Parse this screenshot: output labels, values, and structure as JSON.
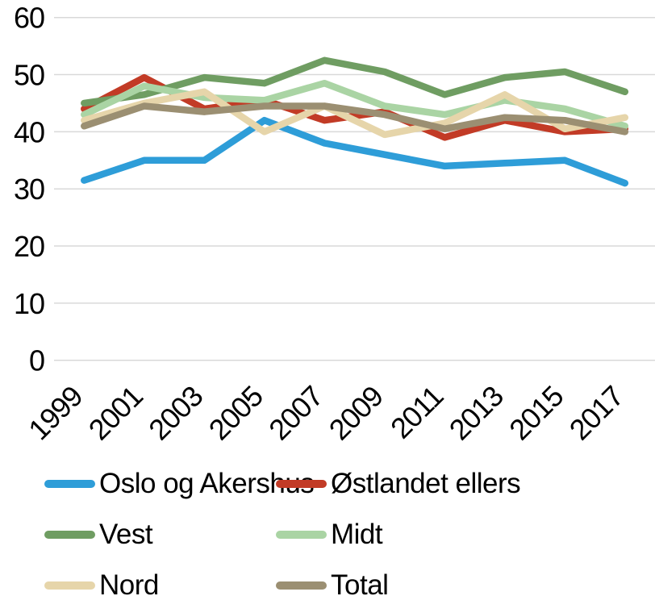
{
  "chart_data": {
    "type": "line",
    "title": "",
    "xlabel": "",
    "ylabel": "",
    "categories": [
      "1999",
      "2001",
      "2003",
      "2005",
      "2007",
      "2009",
      "2011",
      "2013",
      "2015",
      "2017"
    ],
    "series": [
      {
        "name": "Oslo og Akershus",
        "color": "#2e9dd8",
        "values": [
          31.5,
          35,
          35,
          42,
          38,
          36,
          34,
          34.5,
          35,
          31
        ]
      },
      {
        "name": "Østlandet ellers",
        "color": "#c23b26",
        "values": [
          44,
          49.5,
          44,
          45.5,
          42,
          43.5,
          39,
          42,
          40,
          40.5
        ]
      },
      {
        "name": "Vest",
        "color": "#6f9d62",
        "values": [
          45,
          46.5,
          49.5,
          48.5,
          52.5,
          50.5,
          46.5,
          49.5,
          50.5,
          47
        ]
      },
      {
        "name": "Midt",
        "color": "#aad4a4",
        "values": [
          43,
          48,
          46,
          45.5,
          48.5,
          44.5,
          43,
          45.5,
          44,
          41
        ]
      },
      {
        "name": "Nord",
        "color": "#e6d5aa",
        "values": [
          42,
          45,
          47,
          40,
          44.5,
          39.5,
          41.5,
          46.5,
          40.5,
          42.5
        ]
      },
      {
        "name": "Total",
        "color": "#9b8f72",
        "values": [
          41,
          44.5,
          43.5,
          44.5,
          44.5,
          43,
          40.5,
          42.5,
          42,
          40
        ]
      }
    ],
    "ylim": [
      0,
      60
    ],
    "yticks": [
      0,
      10,
      20,
      30,
      40,
      50,
      60
    ],
    "grid": "horizontal",
    "gridline_color": "#d9d9d9",
    "text_color": "#000000",
    "legend_position": "bottom"
  }
}
